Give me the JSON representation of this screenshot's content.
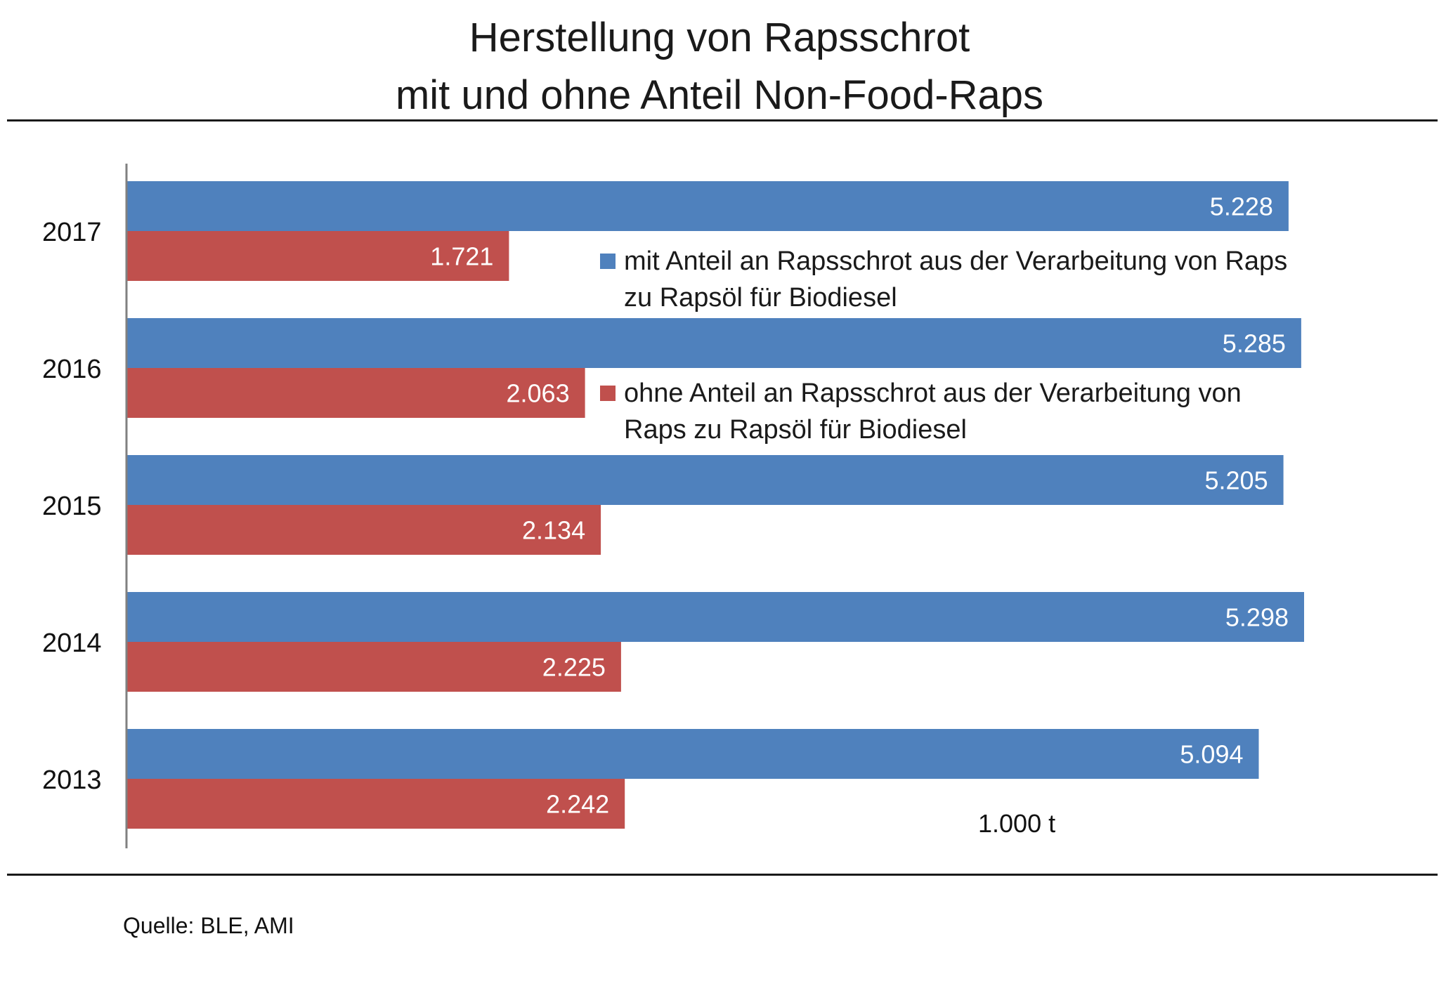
{
  "title": {
    "line1": "Herstellung von Rapsschrot",
    "line2": "mit und ohne Anteil Non-Food-Raps"
  },
  "legend": {
    "blue": "mit Anteil an Rapsschrot aus der Verarbeitung von Raps zu Rapsöl für Biodiesel",
    "red": "ohne Anteil an Rapsschrot aus der Verarbeitung von Raps zu Rapsöl für Biodiesel"
  },
  "unit": "1.000  t",
  "source": "Quelle: BLE, AMI",
  "colors": {
    "blue": "#4F81BD",
    "red": "#C0504D",
    "axis": "#808080"
  },
  "chart_data": {
    "type": "bar",
    "orientation": "horizontal",
    "title": "Herstellung von Rapsschrot mit und ohne Anteil Non-Food-Raps",
    "xlabel": "1.000  t",
    "ylabel": "",
    "categories": [
      "2017",
      "2016",
      "2015",
      "2014",
      "2013"
    ],
    "series": [
      {
        "name": "mit Anteil an Rapsschrot aus der Verarbeitung von Raps zu Rapsöl für Biodiesel",
        "color": "#4F81BD",
        "values": [
          5228,
          5285,
          5205,
          5298,
          5094
        ],
        "labels": [
          "5.228",
          "5.285",
          "5.205",
          "5.298",
          "5.094"
        ]
      },
      {
        "name": "ohne Anteil an Rapsschrot aus der Verarbeitung von Raps zu Rapsöl für Biodiesel",
        "color": "#C0504D",
        "values": [
          1721,
          2063,
          2134,
          2225,
          2242
        ],
        "labels": [
          "1.721",
          "2.063",
          "2.134",
          "2.225",
          "2.242"
        ]
      }
    ],
    "xlim": [
      0,
      5500
    ],
    "grid": false,
    "legend": "right, inside"
  }
}
